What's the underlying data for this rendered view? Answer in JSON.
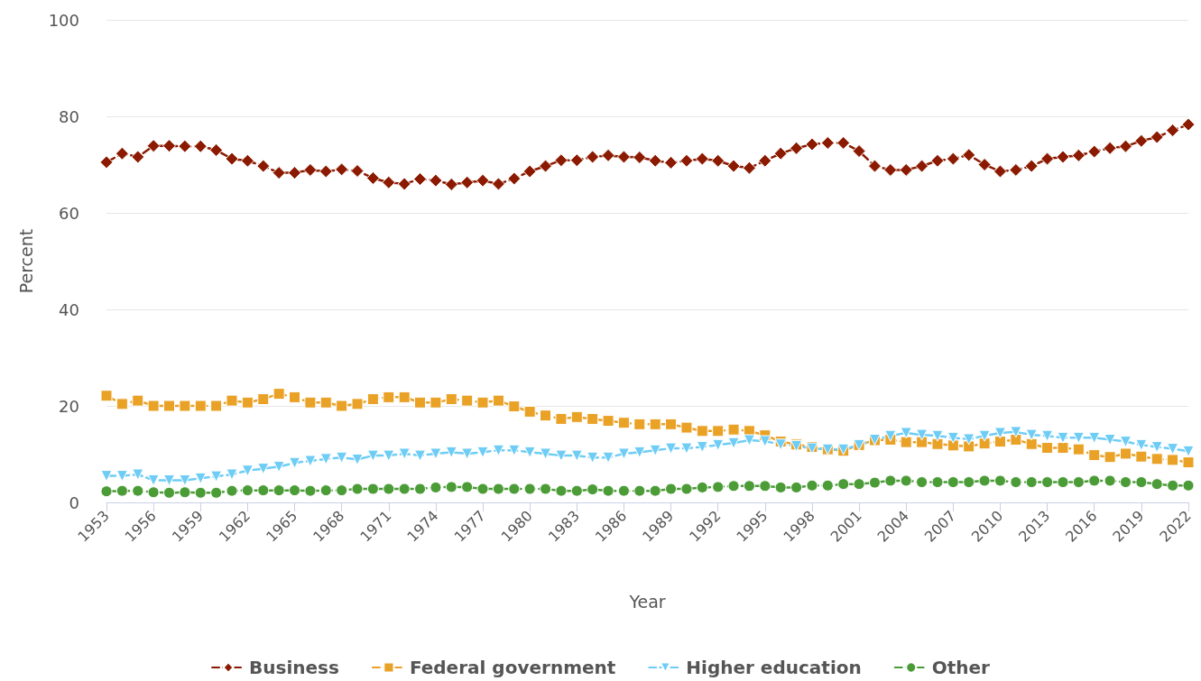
{
  "chart_data": {
    "type": "line",
    "xlabel": "Year",
    "ylabel": "Percent",
    "categories": [
      "1953",
      null,
      null,
      "1956",
      null,
      null,
      "1959",
      null,
      null,
      "1962",
      null,
      null,
      "1965",
      null,
      null,
      "1968",
      null,
      null,
      "1971",
      null,
      null,
      "1974",
      null,
      null,
      "1977",
      null,
      null,
      "1980",
      null,
      null,
      "1983",
      null,
      null,
      "1986",
      null,
      null,
      "1989",
      null,
      null,
      "1992",
      null,
      null,
      "1995",
      null,
      null,
      "1998",
      null,
      null,
      "2001",
      null,
      null,
      "2004",
      null,
      null,
      "2007",
      null,
      null,
      "2010",
      null,
      null,
      "2013",
      null,
      null,
      "2016",
      null,
      null,
      "2019",
      null,
      null,
      "2022"
    ],
    "series": [
      {
        "name": "Business",
        "color": "#8b1a00",
        "marker": "diamond",
        "values": [
          70.5,
          72.3,
          71.6,
          73.9,
          73.9,
          73.8,
          73.8,
          73.0,
          71.2,
          70.8,
          69.7,
          68.3,
          68.3,
          68.9,
          68.6,
          69.0,
          68.7,
          67.2,
          66.3,
          66.0,
          67.0,
          66.7,
          65.9,
          66.3,
          66.7,
          66.0,
          67.1,
          68.6,
          69.7,
          70.9,
          70.9,
          71.6,
          71.9,
          71.6,
          71.5,
          70.8,
          70.4,
          70.8,
          71.2,
          70.8,
          69.7,
          69.3,
          70.8,
          72.3,
          73.4,
          74.2,
          74.5,
          74.5,
          72.8,
          69.7,
          68.9,
          68.9,
          69.7,
          70.8,
          71.2,
          72.0,
          70.0,
          68.6,
          68.9,
          69.7,
          71.2,
          71.6,
          71.9,
          72.7,
          73.4,
          73.8,
          74.9,
          75.7,
          77.1,
          78.3
        ]
      },
      {
        "name": "Federal government",
        "color": "#e9a126",
        "marker": "square",
        "values": [
          22.1,
          20.4,
          21.1,
          20.0,
          20.0,
          20.0,
          20.0,
          20.0,
          21.1,
          20.7,
          21.4,
          22.5,
          21.8,
          20.7,
          20.7,
          20.0,
          20.4,
          21.4,
          21.8,
          21.8,
          20.7,
          20.7,
          21.4,
          21.1,
          20.7,
          21.1,
          19.9,
          18.8,
          18.0,
          17.3,
          17.7,
          17.3,
          16.9,
          16.5,
          16.2,
          16.2,
          16.2,
          15.5,
          14.8,
          14.8,
          15.1,
          14.8,
          13.9,
          12.6,
          12.0,
          11.5,
          11.0,
          10.7,
          11.9,
          12.9,
          13.0,
          12.5,
          12.5,
          12.1,
          11.8,
          11.6,
          12.2,
          12.6,
          13.0,
          12.1,
          11.3,
          11.3,
          11.0,
          9.8,
          9.4,
          10.1,
          9.5,
          9.0,
          8.8,
          8.3
        ]
      },
      {
        "name": "Higher education",
        "color": "#6fcdf5",
        "marker": "triangle",
        "values": [
          5.5,
          5.5,
          5.8,
          4.6,
          4.6,
          4.6,
          5.0,
          5.4,
          5.8,
          6.6,
          7.0,
          7.4,
          8.2,
          8.6,
          9.0,
          9.3,
          8.9,
          9.7,
          9.7,
          10.1,
          9.7,
          10.1,
          10.4,
          10.1,
          10.4,
          10.8,
          10.8,
          10.4,
          10.1,
          9.7,
          9.7,
          9.3,
          9.3,
          10.1,
          10.4,
          10.8,
          11.2,
          11.2,
          11.5,
          11.9,
          12.3,
          12.9,
          12.7,
          12.0,
          11.7,
          11.2,
          11.0,
          11.0,
          11.9,
          13.0,
          13.8,
          14.4,
          14.0,
          13.8,
          13.4,
          13.1,
          13.8,
          14.4,
          14.6,
          14.0,
          13.8,
          13.4,
          13.4,
          13.4,
          13.0,
          12.6,
          11.9,
          11.5,
          11.1,
          10.6
        ]
      },
      {
        "name": "Other",
        "color": "#4b9c37",
        "marker": "circle",
        "values": [
          2.3,
          2.4,
          2.4,
          2.1,
          2.0,
          2.1,
          2.0,
          2.0,
          2.4,
          2.5,
          2.5,
          2.5,
          2.5,
          2.4,
          2.5,
          2.5,
          2.8,
          2.8,
          2.8,
          2.8,
          2.8,
          3.1,
          3.2,
          3.2,
          2.8,
          2.8,
          2.8,
          2.8,
          2.8,
          2.4,
          2.4,
          2.7,
          2.4,
          2.4,
          2.4,
          2.4,
          2.8,
          2.8,
          3.1,
          3.2,
          3.4,
          3.4,
          3.4,
          3.1,
          3.1,
          3.5,
          3.5,
          3.8,
          3.8,
          4.1,
          4.5,
          4.5,
          4.2,
          4.2,
          4.2,
          4.2,
          4.5,
          4.5,
          4.2,
          4.2,
          4.2,
          4.2,
          4.2,
          4.5,
          4.5,
          4.2,
          4.2,
          3.8,
          3.5,
          3.5
        ]
      }
    ],
    "ylim": [
      0,
      100
    ],
    "yticks": [
      0,
      20,
      40,
      60,
      80,
      100
    ],
    "grid": "y",
    "legend": "bottom",
    "line_style": "dashed"
  }
}
